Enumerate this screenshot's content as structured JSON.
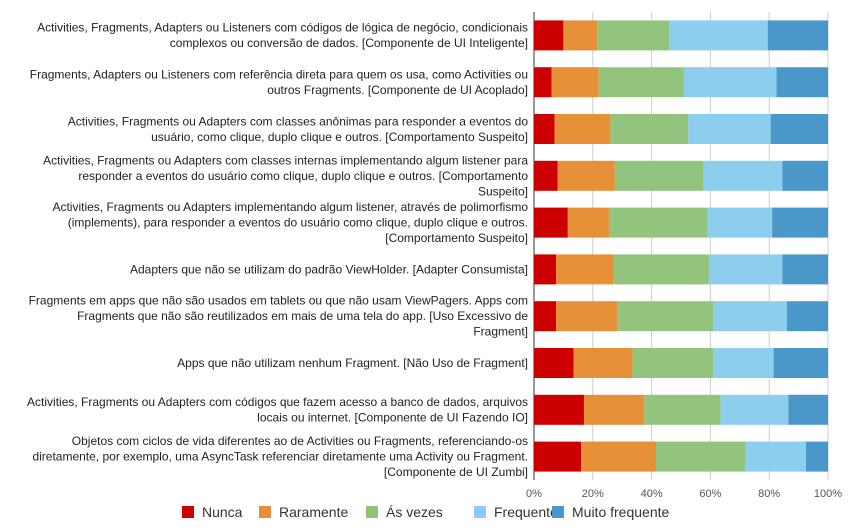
{
  "chart_data": {
    "type": "bar",
    "orientation": "horizontal",
    "stacked": "percent",
    "xlim": [
      0,
      100
    ],
    "x_ticks": [
      "0%",
      "20%",
      "40%",
      "60%",
      "80%",
      "100%"
    ],
    "grid": true,
    "legend_position": "bottom",
    "categories": [
      [
        "Activities, Fragments, Adapters ou Listeners com códigos de lógica de negócio, condicionais",
        "complexos ou conversão de dados. [Componente de UI Inteligente]"
      ],
      [
        "Fragments, Adapters ou Listeners com referência direta para quem os usa, como Activities ou",
        "outros Fragments. [Componente de UI Acoplado]"
      ],
      [
        "Activities, Fragments ou Adapters com classes anônimas para responder a eventos do",
        "usuário, como clique, duplo clique e outros. [Comportamento Suspeito]"
      ],
      [
        "Activities, Fragments ou Adapters com classes internas implementando algum listener para",
        "responder a eventos do usuário como clique, duplo clique e outros. [Comportamento",
        "Suspeito]"
      ],
      [
        "Activities, Fragments ou Adapters implementando algum listener, através de polimorfismo",
        "(implements), para responder a eventos do usuário como clique, duplo clique e outros.",
        "[Comportamento Suspeito]"
      ],
      [
        "Adapters que não se utilizam do padrão ViewHolder. [Adapter Consumista]"
      ],
      [
        "Fragments em apps que não são usados em tablets ou que não usam ViewPagers. Apps com",
        "Fragments que não são reutilizados em mais de uma tela do app. [Uso Excessivo de",
        "Fragment]"
      ],
      [
        "Apps que não utilizam nenhum Fragment. [Não Uso de Fragment]"
      ],
      [
        "Activities, Fragments ou Adapters com códigos que fazem acesso a banco de dados, arquivos",
        "locais ou internet. [Componente de UI Fazendo IO]"
      ],
      [
        "Objetos com ciclos de vida diferentes ao de Activities ou Fragments, referenciando-os",
        "diretamente, por exemplo, uma AsyncTask referenciar diretamente uma Activity ou Fragment.",
        "[Componente de UI Zumbi]"
      ]
    ],
    "series": [
      {
        "name": "Nunca",
        "color": "#cc0000",
        "values": [
          10,
          6,
          7,
          8,
          11.5,
          7.5,
          7.5,
          13.5,
          17,
          16
        ]
      },
      {
        "name": "Raramente",
        "color": "#e69138",
        "values": [
          11.5,
          16,
          19,
          19.5,
          14,
          19.5,
          21,
          20,
          20.5,
          25.5
        ]
      },
      {
        "name": "Ás vezes",
        "color": "#93c47d",
        "values": [
          24.5,
          29,
          26.5,
          30,
          33.5,
          32.5,
          32.5,
          27.5,
          26,
          30.5
        ]
      },
      {
        "name": "Frequente",
        "color": "#8dcdee",
        "values": [
          33.5,
          31.5,
          28,
          27,
          22,
          25,
          25,
          20.5,
          23,
          20.5
        ]
      },
      {
        "name": "Muito frequente",
        "color": "#4a98c9",
        "values": [
          20.5,
          17.5,
          19.5,
          15.5,
          19,
          15.5,
          14,
          18.5,
          13.5,
          7.5
        ]
      }
    ]
  }
}
